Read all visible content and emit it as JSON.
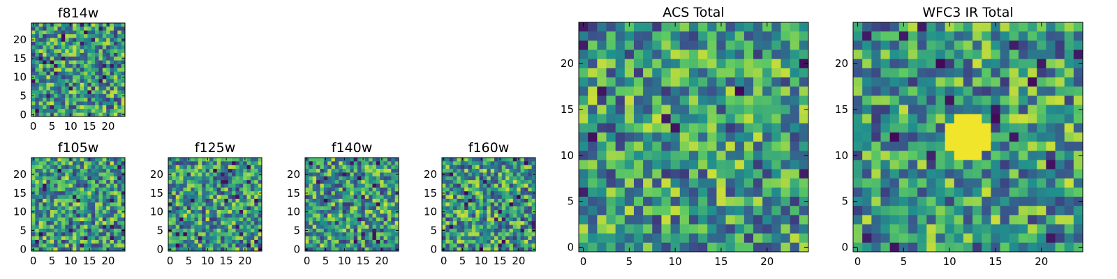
{
  "chart_data": [
    {
      "type": "heatmap",
      "title": "f814w",
      "grid_size": 25,
      "xticks": [
        "0",
        "5",
        "10",
        "15",
        "20"
      ],
      "yticks": [
        "0",
        "5",
        "10",
        "15",
        "20"
      ],
      "xlim": [
        -0.5,
        24.5
      ],
      "ylim": [
        -0.5,
        24.5
      ],
      "colormap": "viridis",
      "seed": 814,
      "values": "25x25 noise field, pixel values normalized 0-1 (not individually legible)"
    },
    {
      "type": "heatmap",
      "title": "f105w",
      "grid_size": 25,
      "xticks": [
        "0",
        "5",
        "10",
        "15",
        "20"
      ],
      "yticks": [
        "0",
        "5",
        "10",
        "15",
        "20"
      ],
      "xlim": [
        -0.5,
        24.5
      ],
      "ylim": [
        -0.5,
        24.5
      ],
      "colormap": "viridis",
      "seed": 105
    },
    {
      "type": "heatmap",
      "title": "f125w",
      "grid_size": 25,
      "xticks": [
        "0",
        "5",
        "10",
        "15",
        "20"
      ],
      "yticks": [
        "0",
        "5",
        "10",
        "15",
        "20"
      ],
      "xlim": [
        -0.5,
        24.5
      ],
      "ylim": [
        -0.5,
        24.5
      ],
      "colormap": "viridis",
      "seed": 125
    },
    {
      "type": "heatmap",
      "title": "f140w",
      "grid_size": 25,
      "xticks": [
        "0",
        "5",
        "10",
        "15",
        "20"
      ],
      "yticks": [
        "0",
        "5",
        "10",
        "15",
        "20"
      ],
      "xlim": [
        -0.5,
        24.5
      ],
      "ylim": [
        -0.5,
        24.5
      ],
      "colormap": "viridis",
      "seed": 140
    },
    {
      "type": "heatmap",
      "title": "f160w",
      "grid_size": 25,
      "xticks": [
        "0",
        "5",
        "10",
        "15",
        "20"
      ],
      "yticks": [
        "0",
        "5",
        "10",
        "15",
        "20"
      ],
      "xlim": [
        -0.5,
        24.5
      ],
      "ylim": [
        -0.5,
        24.5
      ],
      "colormap": "viridis",
      "seed": 160
    },
    {
      "type": "heatmap",
      "title": "ACS Total",
      "grid_size": 25,
      "xticks": [
        "0",
        "5",
        "10",
        "15",
        "20"
      ],
      "yticks": [
        "0",
        "5",
        "10",
        "15",
        "20"
      ],
      "xlim": [
        -0.5,
        24.5
      ],
      "ylim": [
        -0.5,
        24.5
      ],
      "colormap": "viridis",
      "seed": 901
    },
    {
      "type": "heatmap",
      "title": "WFC3 IR Total",
      "grid_size": 25,
      "xticks": [
        "0",
        "5",
        "10",
        "15",
        "20"
      ],
      "yticks": [
        "0",
        "5",
        "10",
        "15",
        "20"
      ],
      "xlim": [
        -0.5,
        24.5
      ],
      "ylim": [
        -0.5,
        24.5
      ],
      "colormap": "viridis",
      "seed": 902,
      "bright_blob_center": [
        12,
        12
      ]
    }
  ],
  "colors": {
    "viridis_stops": [
      "#440154",
      "#3b528b",
      "#21908d",
      "#5dc963",
      "#fde725"
    ]
  }
}
